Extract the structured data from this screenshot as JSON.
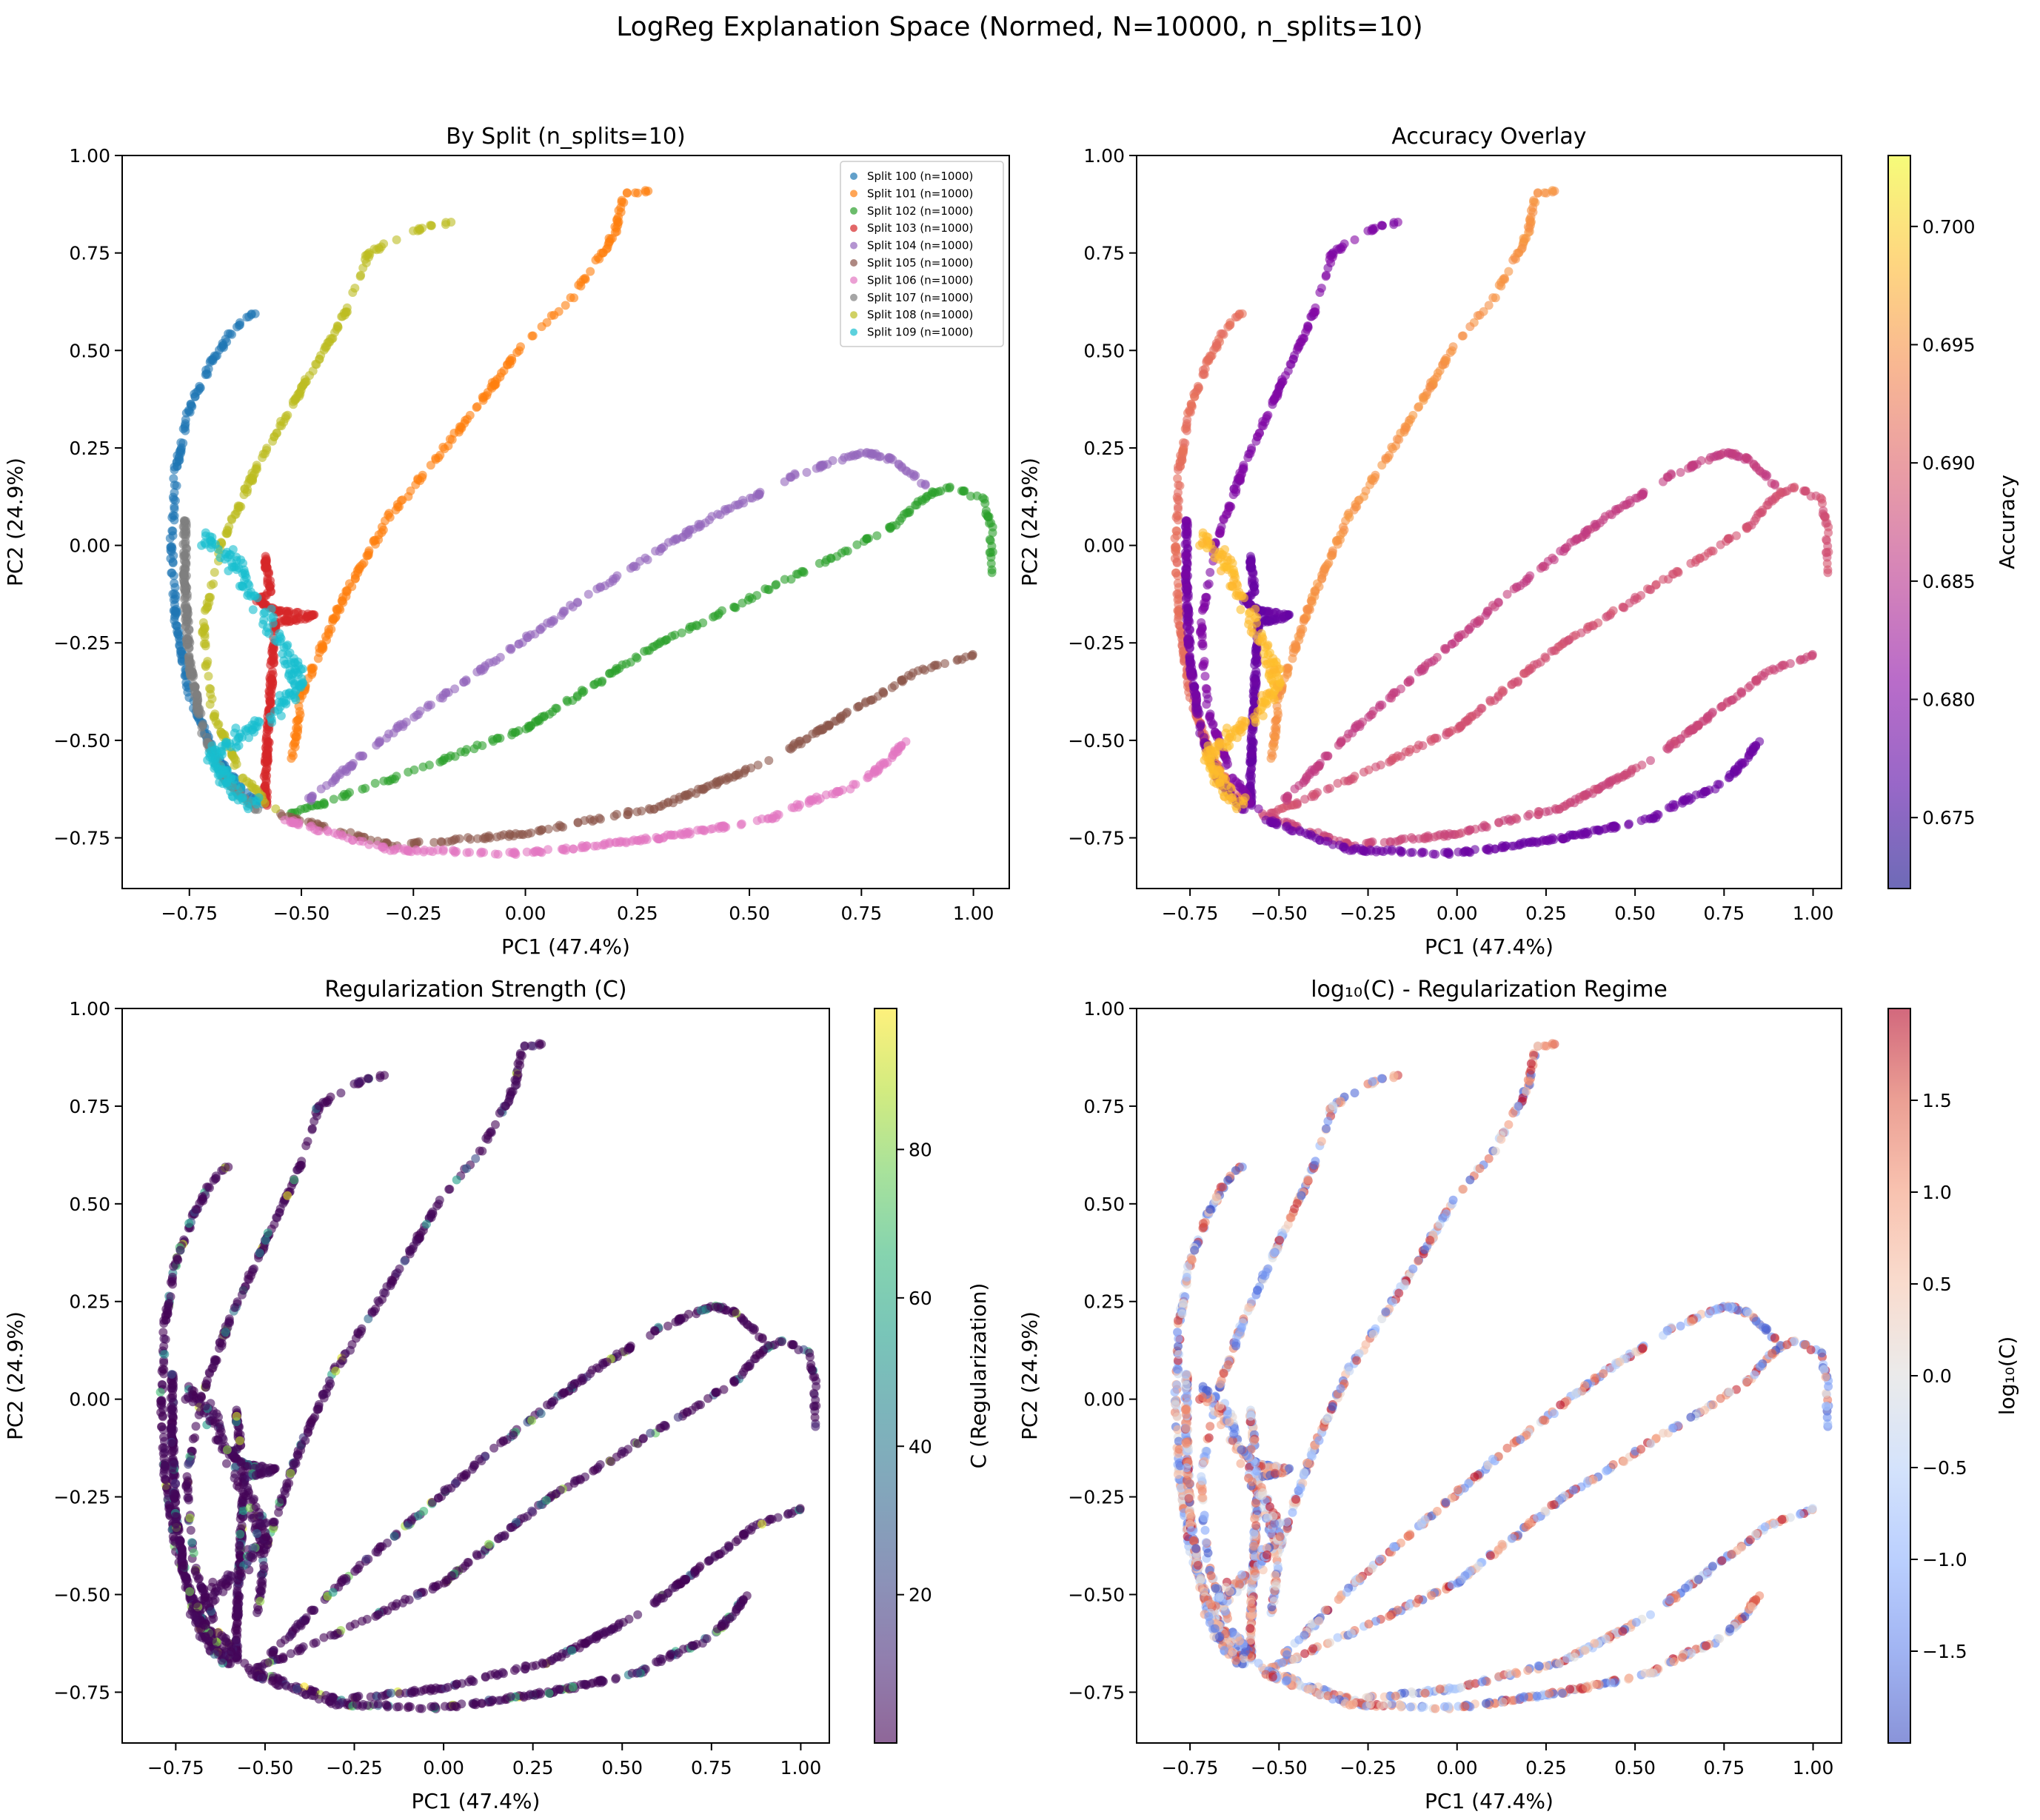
{
  "figure_title": "LogReg Explanation Space (Normed, N=10000, n_splits=10)",
  "chart_data": [
    {
      "id": "split",
      "type": "scatter",
      "title": "By Split (n_splits=10)",
      "xlabel": "PC1 (47.4%)",
      "ylabel": "PC2 (24.9%)",
      "xlim": [
        -0.9,
        1.08
      ],
      "ylim": [
        -0.88,
        1.0
      ],
      "xticks": [
        -0.75,
        -0.5,
        -0.25,
        0.0,
        0.25,
        0.5,
        0.75,
        1.0
      ],
      "xtick_labels": [
        "−0.75",
        "−0.50",
        "−0.25",
        "0.00",
        "0.25",
        "0.50",
        "0.75",
        "1.00"
      ],
      "yticks": [
        -0.75,
        -0.5,
        -0.25,
        0.0,
        0.25,
        0.5,
        0.75,
        1.0
      ],
      "ytick_labels": [
        "−0.75",
        "−0.50",
        "−0.25",
        "0.00",
        "0.25",
        "0.50",
        "0.75",
        "1.00"
      ],
      "legend_position": "top-right",
      "color_by": "split"
    },
    {
      "id": "accuracy",
      "type": "scatter",
      "title": "Accuracy Overlay",
      "xlabel": "PC1 (47.4%)",
      "ylabel": "PC2 (24.9%)",
      "xlim": [
        -0.9,
        1.08
      ],
      "ylim": [
        -0.88,
        1.0
      ],
      "xticks": [
        -0.75,
        -0.5,
        -0.25,
        0.0,
        0.25,
        0.5,
        0.75,
        1.0
      ],
      "xtick_labels": [
        "−0.75",
        "−0.50",
        "−0.25",
        "0.00",
        "0.25",
        "0.50",
        "0.75",
        "1.00"
      ],
      "yticks": [
        -0.75,
        -0.5,
        -0.25,
        0.0,
        0.25,
        0.5,
        0.75,
        1.0
      ],
      "ytick_labels": [
        "−0.75",
        "−0.50",
        "−0.25",
        "0.00",
        "0.25",
        "0.50",
        "0.75",
        "1.00"
      ],
      "color_by": "accuracy",
      "colorbar": {
        "label": "Accuracy",
        "colormap": "plasma",
        "range": [
          0.672,
          0.703
        ],
        "ticks": [
          0.675,
          0.68,
          0.685,
          0.69,
          0.695,
          0.7
        ],
        "tick_labels": [
          "0.675",
          "0.680",
          "0.685",
          "0.690",
          "0.695",
          "0.700"
        ]
      }
    },
    {
      "id": "creg",
      "type": "scatter",
      "title": "Regularization Strength (C)",
      "xlabel": "PC1 (47.4%)",
      "ylabel": "PC2 (24.9%)",
      "xlim": [
        -0.9,
        1.08
      ],
      "ylim": [
        -0.88,
        1.0
      ],
      "xticks": [
        -0.75,
        -0.5,
        -0.25,
        0.0,
        0.25,
        0.5,
        0.75,
        1.0
      ],
      "xtick_labels": [
        "−0.75",
        "−0.50",
        "−0.25",
        "0.00",
        "0.25",
        "0.50",
        "0.75",
        "1.00"
      ],
      "yticks": [
        -0.75,
        -0.5,
        -0.25,
        0.0,
        0.25,
        0.5,
        0.75,
        1.0
      ],
      "ytick_labels": [
        "−0.75",
        "−0.50",
        "−0.25",
        "0.00",
        "0.25",
        "0.50",
        "0.75",
        "1.00"
      ],
      "color_by": "C",
      "colorbar": {
        "label": "C (Regularization)",
        "colormap": "viridis",
        "range": [
          0.01,
          99
        ],
        "ticks": [
          20,
          40,
          60,
          80
        ],
        "tick_labels": [
          "20",
          "40",
          "60",
          "80"
        ]
      }
    },
    {
      "id": "logc",
      "type": "scatter",
      "title": "log₁₀(C) - Regularization Regime",
      "xlabel": "PC1 (47.4%)",
      "ylabel": "PC2 (24.9%)",
      "xlim": [
        -0.9,
        1.08
      ],
      "ylim": [
        -0.88,
        1.0
      ],
      "xticks": [
        -0.75,
        -0.5,
        -0.25,
        0.0,
        0.25,
        0.5,
        0.75,
        1.0
      ],
      "xtick_labels": [
        "−0.75",
        "−0.50",
        "−0.25",
        "0.00",
        "0.25",
        "0.50",
        "0.75",
        "1.00"
      ],
      "yticks": [
        -0.75,
        -0.5,
        -0.25,
        0.0,
        0.25,
        0.5,
        0.75,
        1.0
      ],
      "ytick_labels": [
        "−0.75",
        "−0.50",
        "−0.25",
        "0.00",
        "0.25",
        "0.50",
        "0.75",
        "1.00"
      ],
      "color_by": "logC",
      "colorbar": {
        "label": "log₁₀(C)",
        "colormap": "coolwarm",
        "range": [
          -2.0,
          2.0
        ],
        "ticks": [
          -1.5,
          -1.0,
          -0.5,
          0.0,
          0.5,
          1.0,
          1.5
        ],
        "tick_labels": [
          "−1.5",
          "−1.0",
          "−0.5",
          "0.0",
          "0.5",
          "1.0",
          "1.5"
        ]
      }
    }
  ],
  "splits": [
    {
      "name": "Split 100 (n=1000)",
      "color": "#1f77b4",
      "accuracy": 0.6915,
      "path": [
        [
          -0.6,
          0.6
        ],
        [
          -0.65,
          0.56
        ],
        [
          -0.7,
          0.47
        ],
        [
          -0.75,
          0.35
        ],
        [
          -0.78,
          0.2
        ],
        [
          -0.79,
          0.0
        ],
        [
          -0.78,
          -0.2
        ],
        [
          -0.75,
          -0.38
        ],
        [
          -0.7,
          -0.52
        ],
        [
          -0.64,
          -0.62
        ],
        [
          -0.57,
          -0.68
        ]
      ]
    },
    {
      "name": "Split 101 (n=1000)",
      "color": "#ff7f0e",
      "accuracy": 0.695,
      "path": [
        [
          0.28,
          0.91
        ],
        [
          0.22,
          0.9
        ],
        [
          0.2,
          0.8
        ],
        [
          0.1,
          0.63
        ],
        [
          0.0,
          0.52
        ],
        [
          -0.08,
          0.4
        ],
        [
          -0.2,
          0.22
        ],
        [
          -0.3,
          0.08
        ],
        [
          -0.4,
          -0.12
        ],
        [
          -0.5,
          -0.38
        ],
        [
          -0.52,
          -0.55
        ]
      ]
    },
    {
      "name": "Split 102 (n=1000)",
      "color": "#2ca02c",
      "accuracy": 0.6885,
      "path": [
        [
          1.04,
          -0.07
        ],
        [
          1.04,
          0.05
        ],
        [
          1.02,
          0.12
        ],
        [
          0.95,
          0.15
        ],
        [
          0.9,
          0.13
        ],
        [
          0.82,
          0.05
        ],
        [
          0.6,
          -0.08
        ],
        [
          0.3,
          -0.25
        ],
        [
          0.0,
          -0.47
        ],
        [
          -0.3,
          -0.6
        ],
        [
          -0.55,
          -0.7
        ]
      ]
    },
    {
      "name": "Split 103 (n=1000)",
      "color": "#d62728",
      "accuracy": 0.678,
      "path": [
        [
          -0.58,
          -0.03
        ],
        [
          -0.57,
          -0.12
        ],
        [
          -0.6,
          -0.14
        ],
        [
          -0.55,
          -0.17
        ],
        [
          -0.47,
          -0.18
        ],
        [
          -0.56,
          -0.2
        ],
        [
          -0.57,
          -0.4
        ],
        [
          -0.58,
          -0.6
        ],
        [
          -0.58,
          -0.67
        ]
      ]
    },
    {
      "name": "Split 104 (n=1000)",
      "color": "#9467bd",
      "accuracy": 0.6865,
      "path": [
        [
          0.9,
          0.15
        ],
        [
          0.82,
          0.22
        ],
        [
          0.75,
          0.24
        ],
        [
          0.6,
          0.18
        ],
        [
          0.4,
          0.06
        ],
        [
          0.15,
          -0.12
        ],
        [
          -0.1,
          -0.32
        ],
        [
          -0.3,
          -0.48
        ],
        [
          -0.5,
          -0.67
        ]
      ]
    },
    {
      "name": "Split 105 (n=1000)",
      "color": "#8c564b",
      "accuracy": 0.6875,
      "path": [
        [
          1.0,
          -0.28
        ],
        [
          0.95,
          -0.3
        ],
        [
          0.88,
          -0.32
        ],
        [
          0.75,
          -0.41
        ],
        [
          0.55,
          -0.55
        ],
        [
          0.3,
          -0.67
        ],
        [
          0.0,
          -0.74
        ],
        [
          -0.3,
          -0.77
        ],
        [
          -0.55,
          -0.69
        ]
      ]
    },
    {
      "name": "Split 106 (n=1000)",
      "color": "#e377c2",
      "accuracy": 0.6785,
      "path": [
        [
          0.85,
          -0.5
        ],
        [
          0.8,
          -0.56
        ],
        [
          0.75,
          -0.61
        ],
        [
          0.6,
          -0.67
        ],
        [
          0.55,
          -0.7
        ],
        [
          0.3,
          -0.75
        ],
        [
          0.0,
          -0.79
        ],
        [
          -0.3,
          -0.78
        ],
        [
          -0.55,
          -0.7
        ]
      ]
    },
    {
      "name": "Split 107 (n=1000)",
      "color": "#7f7f7f",
      "accuracy": 0.679,
      "path": [
        [
          -0.76,
          0.07
        ],
        [
          -0.76,
          -0.1
        ],
        [
          -0.75,
          -0.3
        ],
        [
          -0.72,
          -0.48
        ],
        [
          -0.67,
          -0.6
        ],
        [
          -0.6,
          -0.68
        ]
      ]
    },
    {
      "name": "Split 108 (n=1000)",
      "color": "#bcbd22",
      "accuracy": 0.68,
      "path": [
        [
          -0.16,
          0.83
        ],
        [
          -0.22,
          0.82
        ],
        [
          -0.3,
          0.78
        ],
        [
          -0.35,
          0.75
        ],
        [
          -0.4,
          0.6
        ],
        [
          -0.5,
          0.4
        ],
        [
          -0.6,
          0.2
        ],
        [
          -0.68,
          0.0
        ],
        [
          -0.72,
          -0.2
        ],
        [
          -0.7,
          -0.42
        ],
        [
          -0.64,
          -0.58
        ],
        [
          -0.56,
          -0.68
        ]
      ]
    },
    {
      "name": "Split 109 (n=1000)",
      "color": "#17becf",
      "accuracy": 0.6985,
      "path": [
        [
          -0.72,
          0.02
        ],
        [
          -0.68,
          0.0
        ],
        [
          -0.65,
          -0.05
        ],
        [
          -0.62,
          -0.12
        ],
        [
          -0.58,
          -0.18
        ],
        [
          -0.55,
          -0.25
        ],
        [
          -0.52,
          -0.3
        ],
        [
          -0.5,
          -0.36
        ],
        [
          -0.58,
          -0.45
        ],
        [
          -0.66,
          -0.5
        ],
        [
          -0.7,
          -0.55
        ],
        [
          -0.66,
          -0.62
        ],
        [
          -0.6,
          -0.67
        ]
      ]
    }
  ]
}
